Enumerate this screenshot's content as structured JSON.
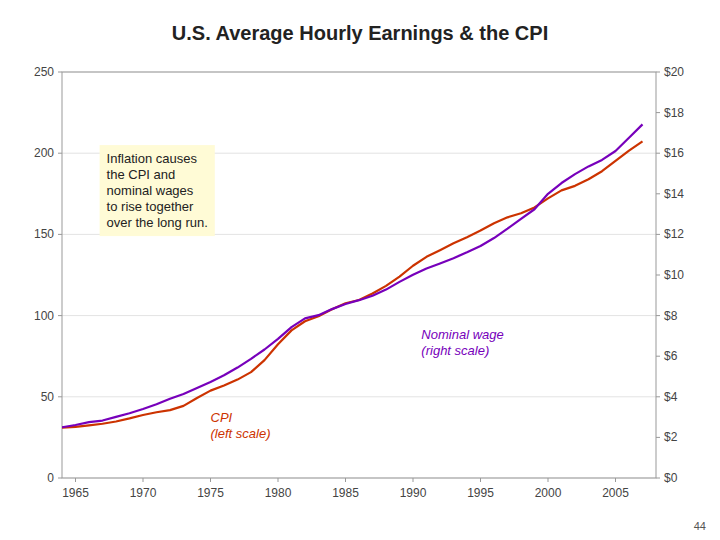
{
  "chart_data": {
    "type": "line",
    "title": "U.S. Average Hourly Earnings & the CPI",
    "x": [
      1964,
      1965,
      1966,
      1967,
      1968,
      1969,
      1970,
      1971,
      1972,
      1973,
      1974,
      1975,
      1976,
      1977,
      1978,
      1979,
      1980,
      1981,
      1982,
      1983,
      1984,
      1985,
      1986,
      1987,
      1988,
      1989,
      1990,
      1991,
      1992,
      1993,
      1994,
      1995,
      1996,
      1997,
      1998,
      1999,
      2000,
      2001,
      2002,
      2003,
      2004,
      2005,
      2006,
      2007
    ],
    "series": [
      {
        "name": "CPI\n(left scale)",
        "color": "#cc3300",
        "values": [
          31.0,
          31.5,
          32.4,
          33.4,
          34.8,
          36.7,
          38.8,
          40.5,
          41.8,
          44.4,
          49.3,
          53.8,
          56.9,
          60.6,
          65.2,
          72.6,
          82.4,
          90.9,
          96.5,
          99.6,
          103.9,
          107.6,
          109.6,
          113.6,
          118.3,
          124.0,
          130.7,
          136.2,
          140.3,
          144.5,
          148.2,
          152.4,
          156.9,
          160.5,
          163.0,
          166.6,
          172.2,
          177.1,
          179.9,
          184.0,
          188.9,
          195.3,
          201.6,
          207.3
        ]
      },
      {
        "name": "Nominal wage\n(right scale)",
        "color": "#7700bb",
        "axis": "y2",
        "values": [
          2.5,
          2.61,
          2.75,
          2.83,
          3.01,
          3.19,
          3.4,
          3.63,
          3.9,
          4.14,
          4.43,
          4.73,
          5.06,
          5.44,
          5.87,
          6.33,
          6.85,
          7.43,
          7.86,
          8.02,
          8.32,
          8.57,
          8.76,
          8.98,
          9.28,
          9.66,
          10.01,
          10.32,
          10.57,
          10.83,
          11.12,
          11.43,
          11.82,
          12.28,
          12.77,
          13.24,
          14.0,
          14.53,
          14.97,
          15.35,
          15.67,
          16.11,
          16.76,
          17.42
        ]
      }
    ],
    "xlim": [
      1964,
      2008
    ],
    "xticks": [
      1965,
      1970,
      1975,
      1980,
      1985,
      1990,
      1995,
      2000,
      2005
    ],
    "ylim": [
      0,
      250
    ],
    "yticks": [
      0,
      50,
      100,
      150,
      200,
      250
    ],
    "y2lim": [
      0,
      20
    ],
    "y2ticks": [
      {
        "value": 0,
        "label": "$0"
      },
      {
        "value": 2,
        "label": "$2"
      },
      {
        "value": 4,
        "label": "$4"
      },
      {
        "value": 6,
        "label": "$6"
      },
      {
        "value": 8,
        "label": "$8"
      },
      {
        "value": 10,
        "label": "$10"
      },
      {
        "value": 12,
        "label": "$12"
      },
      {
        "value": 14,
        "label": "$14"
      },
      {
        "value": 16,
        "label": "$16"
      },
      {
        "value": 18,
        "label": "$18"
      },
      {
        "value": 20,
        "label": "$20"
      }
    ],
    "grid": true,
    "annotation": "Inflation causes\nthe CPI and\nnominal wages\nto rise together\nover the long run.",
    "footnote": "44"
  }
}
